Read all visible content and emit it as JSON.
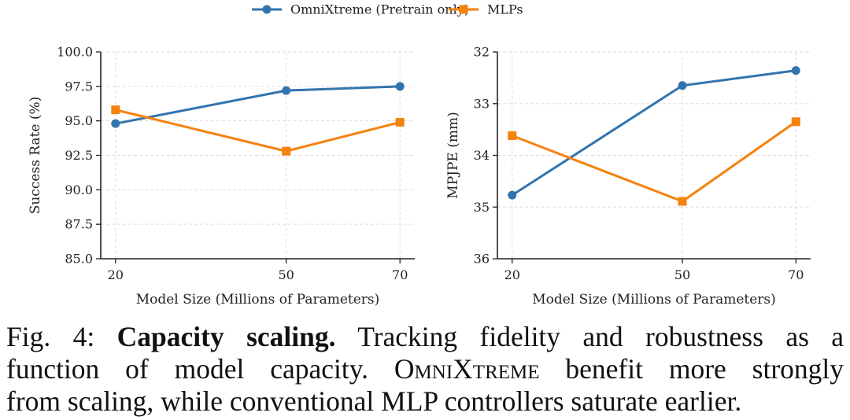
{
  "legend": {
    "placement": "top-center",
    "entries": [
      {
        "label": "OmniXtreme (Pretrain only)",
        "color": "#3274ae",
        "marker": "circle"
      },
      {
        "label": "MLPs",
        "color": "#f5820d",
        "marker": "square"
      }
    ]
  },
  "chart_data": [
    {
      "type": "line",
      "xlabel": "Model Size (Millions of Parameters)",
      "ylabel": "Success Rate (%)",
      "x": [
        20,
        50,
        70
      ],
      "xticks": [
        "20",
        "50",
        "70"
      ],
      "ylim": [
        85.0,
        100.0
      ],
      "yticks": [
        "85.0",
        "87.5",
        "90.0",
        "92.5",
        "95.0",
        "97.5",
        "100.0"
      ],
      "yinverted": false,
      "grid": true,
      "series": [
        {
          "name": "OmniXtreme (Pretrain only)",
          "values": [
            94.8,
            97.2,
            97.5
          ]
        },
        {
          "name": "MLPs",
          "values": [
            95.8,
            92.8,
            94.9
          ]
        }
      ]
    },
    {
      "type": "line",
      "xlabel": "Model Size (Millions of Parameters)",
      "ylabel": "MPJPE (mm)",
      "x": [
        20,
        50,
        70
      ],
      "xticks": [
        "20",
        "50",
        "70"
      ],
      "ylim": [
        36,
        32
      ],
      "yticks": [
        "32",
        "33",
        "34",
        "35",
        "36"
      ],
      "yinverted": true,
      "grid": true,
      "series": [
        {
          "name": "OmniXtreme (Pretrain only)",
          "values": [
            34.77,
            32.65,
            32.36
          ]
        },
        {
          "name": "MLPs",
          "values": [
            33.62,
            34.89,
            33.35
          ]
        }
      ]
    }
  ],
  "caption": {
    "fig": "Fig. 4:",
    "bold": "Capacity scaling.",
    "line1_rest": "Tracking fidelity and robustness as a",
    "line2_a": "function of model capacity.",
    "line2_sc": "OmniXtreme",
    "line2_b": "benefit more strongly",
    "line3": "from scaling, while conventional MLP controllers saturate earlier."
  }
}
